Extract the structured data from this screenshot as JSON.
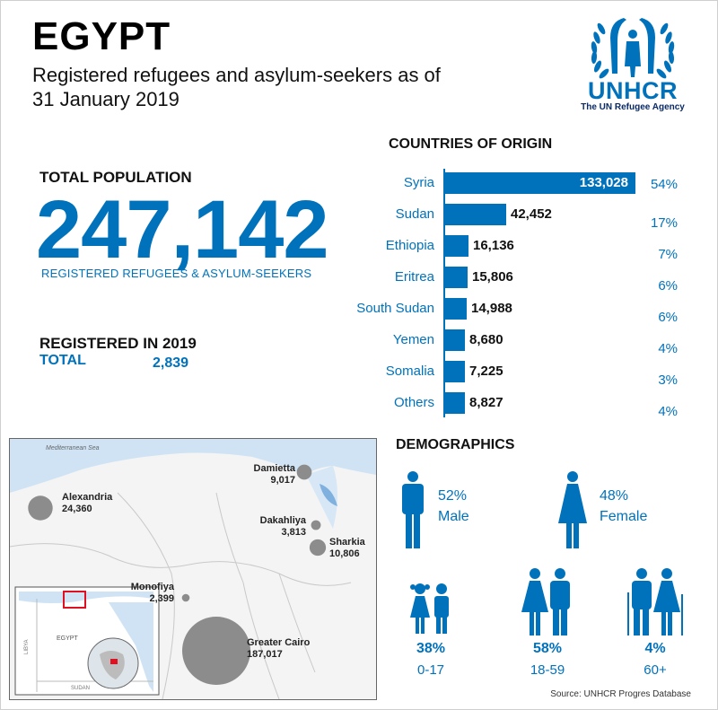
{
  "header": {
    "country": "EGYPT",
    "subtitle": "Registered refugees and asylum-seekers as of 31 January 2019",
    "logo_name": "UNHCR",
    "logo_tagline": "The UN Refugee Agency"
  },
  "total_population": {
    "label": "TOTAL POPULATION",
    "value": "247,142",
    "description": "REGISTERED REFUGEES & ASYLUM-SEEKERS"
  },
  "registered_2019": {
    "label": "REGISTERED IN 2019",
    "total_label": "TOTAL",
    "total_value": "2,839"
  },
  "countries_of_origin": {
    "title": "COUNTRIES OF ORIGIN",
    "items": [
      {
        "country": "Syria",
        "value": "133,028",
        "pct": "54%",
        "num": 133028
      },
      {
        "country": "Sudan",
        "value": "42,452",
        "pct": "17%",
        "num": 42452
      },
      {
        "country": "Ethiopia",
        "value": "16,136",
        "pct": "7%",
        "num": 16136
      },
      {
        "country": "Eritrea",
        "value": "15,806",
        "pct": "6%",
        "num": 15806
      },
      {
        "country": "South Sudan",
        "value": "14,988",
        "pct": "6%",
        "num": 14988
      },
      {
        "country": "Yemen",
        "value": "8,680",
        "pct": "4%",
        "num": 8680
      },
      {
        "country": "Somalia",
        "value": "7,225",
        "pct": "3%",
        "num": 7225
      },
      {
        "country": "Others",
        "value": "8,827",
        "pct": "4%",
        "num": 8827
      }
    ]
  },
  "map": {
    "sea_label": "Mediterranean Sea",
    "inset_country": "EGYPT",
    "inset_libya": "LIBYA",
    "inset_sudan": "SUDAN",
    "cities": [
      {
        "name": "Alexandria",
        "value": "24,360",
        "num": 24360
      },
      {
        "name": "Damietta",
        "value": "9,017",
        "num": 9017
      },
      {
        "name": "Dakahliya",
        "value": "3,813",
        "num": 3813
      },
      {
        "name": "Sharkia",
        "value": "10,806",
        "num": 10806
      },
      {
        "name": "Monofiya",
        "value": "2,399",
        "num": 2399
      },
      {
        "name": "Greater Cairo",
        "value": "187,017",
        "num": 187017
      }
    ]
  },
  "demographics": {
    "title": "DEMOGRAPHICS",
    "male": {
      "pct": "52%",
      "label": "Male"
    },
    "female": {
      "pct": "48%",
      "label": "Female"
    },
    "ages": [
      {
        "pct": "38%",
        "label": "0-17"
      },
      {
        "pct": "58%",
        "label": "18-59"
      },
      {
        "pct": "4%",
        "label": "60+"
      }
    ]
  },
  "source": "Source: UNHCR Progres Database",
  "colors": {
    "accent": "#0072bc",
    "bubble": "#8c8c8c"
  }
}
